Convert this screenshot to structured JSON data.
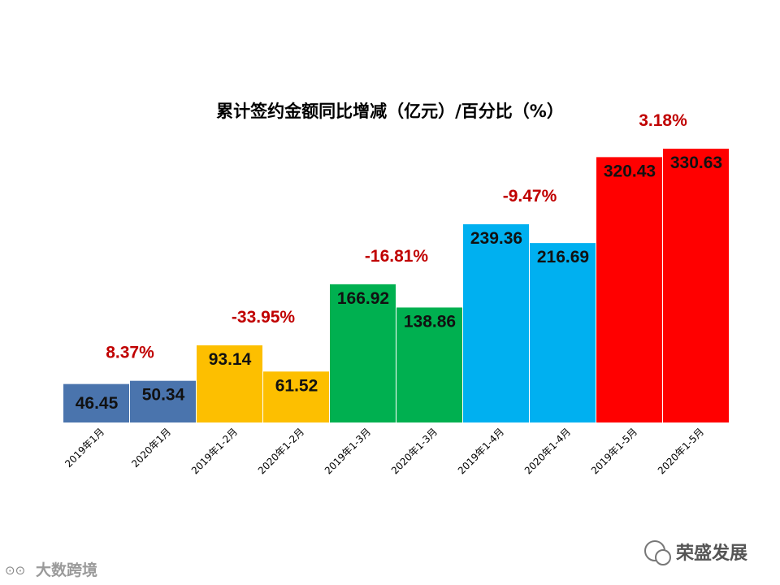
{
  "chart_data": {
    "type": "bar",
    "title": "累计签约金额同比增减（亿元）/百分比（%）",
    "categories": [
      "2019年1月",
      "2020年1月",
      "2019年1-2月",
      "2020年1-2月",
      "2019年1-3月",
      "2020年1-3月",
      "2019年1-4月",
      "2020年1-4月",
      "2019年1-5月",
      "2020年1-5月"
    ],
    "values": [
      46.45,
      50.34,
      93.14,
      61.52,
      166.92,
      138.86,
      239.36,
      216.69,
      320.43,
      330.63
    ],
    "value_labels": [
      "46.45",
      "50.34",
      "93.14",
      "61.52",
      "166.92",
      "138.86",
      "239.36",
      "216.69",
      "320.43",
      "330.63"
    ],
    "bar_colors": [
      "#4a74ad",
      "#4a74ad",
      "#fdbf00",
      "#fdbf00",
      "#00b050",
      "#00b050",
      "#00b0f0",
      "#00b0f0",
      "#ff0000",
      "#ff0000"
    ],
    "yoy_changes": [
      {
        "group": [
          "2019年1月",
          "2020年1月"
        ],
        "value": 8.37,
        "label": "8.37%"
      },
      {
        "group": [
          "2019年1-2月",
          "2020年1-2月"
        ],
        "value": -33.95,
        "label": "-33.95%"
      },
      {
        "group": [
          "2019年1-3月",
          "2020年1-3月"
        ],
        "value": -16.81,
        "label": "-16.81%"
      },
      {
        "group": [
          "2019年1-4月",
          "2020年1-4月"
        ],
        "value": -9.47,
        "label": "-9.47%"
      },
      {
        "group": [
          "2019年1-5月",
          "2020年1-5月"
        ],
        "value": 3.18,
        "label": "3.18%"
      }
    ],
    "pct_color": "#c00000",
    "ylim": [
      0,
      330.63
    ],
    "grid": false,
    "legend": "none",
    "xlabel": "",
    "ylabel": ""
  },
  "watermarks": {
    "bottom_left": "大数跨境",
    "bottom_right": "荣盛发展"
  }
}
